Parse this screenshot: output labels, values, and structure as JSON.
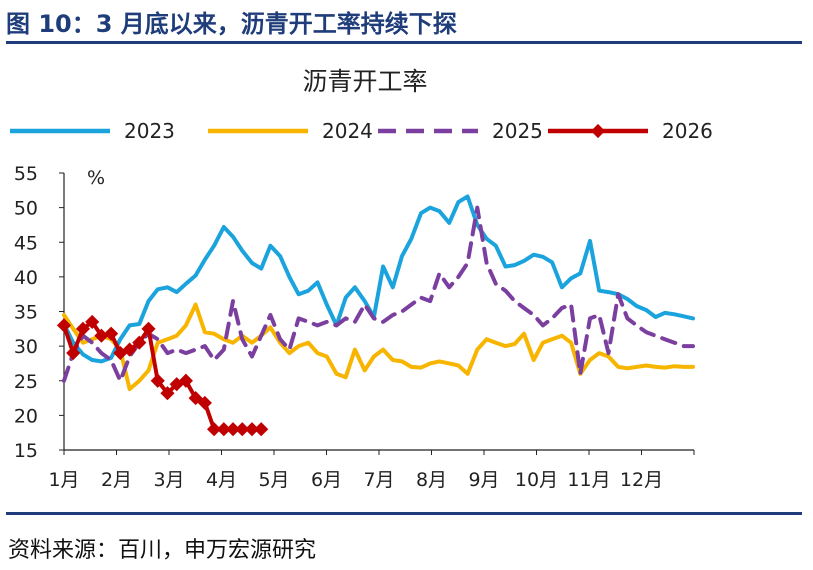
{
  "figure": {
    "title": "图 10：3 月底以来，沥青开工率持续下探",
    "source": "资料来源：百川，申万宏源研究"
  },
  "colors": {
    "title": "#1f3d7a",
    "series_2023": "#1aa3dc",
    "series_2024": "#f7b500",
    "series_2025": "#7b3f9f",
    "series_2026": "#c00000",
    "axis": "#222222"
  },
  "chart_data": {
    "type": "line",
    "title": "沥青开工率",
    "unit": "%",
    "xlabel": "",
    "ylabel": "",
    "ylim": [
      15,
      55
    ],
    "yticks": [
      15,
      20,
      25,
      30,
      35,
      40,
      45,
      50,
      55
    ],
    "xlim": [
      1,
      13.3
    ],
    "xticks": [
      "1月",
      "2月",
      "3月",
      "4月",
      "5月",
      "6月",
      "7月",
      "8月",
      "9月",
      "10月",
      "11月",
      "12月"
    ],
    "grid": false,
    "legend_position": "top",
    "series": [
      {
        "name": "2023",
        "style": "solid",
        "x": [
          1.0,
          1.18,
          1.37,
          1.55,
          1.73,
          1.92,
          2.1,
          2.28,
          2.47,
          2.65,
          2.83,
          3.02,
          3.2,
          3.38,
          3.57,
          3.75,
          3.93,
          4.12,
          4.3,
          4.48,
          4.67,
          4.85,
          5.03,
          5.22,
          5.4,
          5.58,
          5.77,
          5.95,
          6.13,
          6.32,
          6.5,
          6.68,
          6.87,
          7.05,
          7.23,
          7.42,
          7.6,
          7.78,
          7.97,
          8.15,
          8.33,
          8.52,
          8.7,
          8.88,
          9.07,
          9.25,
          9.43,
          9.62,
          9.8,
          9.98,
          10.17,
          10.35,
          10.53,
          10.72,
          10.9,
          11.08,
          11.27,
          11.45,
          11.63,
          11.82,
          12.0,
          12.18,
          12.37,
          12.55,
          12.73,
          12.92,
          13.1,
          13.28
        ],
        "values": [
          33.2,
          30.5,
          28.8,
          28.0,
          27.8,
          28.3,
          31.0,
          33.0,
          33.2,
          36.5,
          38.2,
          38.5,
          37.8,
          39.0,
          40.2,
          42.5,
          44.5,
          47.2,
          45.8,
          43.8,
          42.0,
          41.2,
          44.5,
          43.0,
          40.0,
          37.5,
          38.0,
          39.2,
          36.0,
          33.0,
          37.0,
          38.5,
          36.5,
          34.2,
          41.5,
          38.5,
          43.0,
          45.5,
          49.2,
          50.0,
          49.5,
          47.8,
          50.8,
          51.6,
          47.5,
          45.5,
          44.5,
          41.5,
          41.7,
          42.3,
          43.2,
          42.9,
          42.1,
          38.5,
          39.8,
          40.5,
          45.2,
          38.0,
          37.8,
          37.5,
          36.8,
          35.8,
          35.2,
          34.2,
          34.8,
          34.6,
          34.3,
          34.0
        ]
      },
      {
        "name": "2024",
        "style": "solid",
        "x": [
          1.0,
          1.18,
          1.37,
          1.55,
          1.73,
          1.92,
          2.1,
          2.28,
          2.47,
          2.65,
          2.83,
          3.02,
          3.2,
          3.38,
          3.57,
          3.75,
          3.93,
          4.12,
          4.3,
          4.48,
          4.67,
          4.85,
          5.03,
          5.22,
          5.4,
          5.58,
          5.77,
          5.95,
          6.13,
          6.32,
          6.5,
          6.68,
          6.87,
          7.05,
          7.23,
          7.42,
          7.6,
          7.78,
          7.97,
          8.15,
          8.33,
          8.52,
          8.7,
          8.88,
          9.07,
          9.25,
          9.43,
          9.62,
          9.8,
          9.98,
          10.17,
          10.35,
          10.53,
          10.72,
          10.9,
          11.08,
          11.27,
          11.45,
          11.63,
          11.82,
          12.0,
          12.18,
          12.37,
          12.55,
          12.73,
          12.92,
          13.1,
          13.28
        ],
        "values": [
          34.5,
          32.5,
          30.5,
          31.0,
          31.5,
          31.0,
          29.5,
          23.8,
          25.0,
          26.5,
          30.5,
          31.0,
          31.5,
          33.0,
          36.0,
          32.0,
          31.8,
          31.0,
          30.5,
          31.5,
          30.5,
          31.5,
          32.7,
          30.5,
          29.0,
          30.0,
          30.5,
          29.0,
          28.5,
          26.0,
          25.5,
          29.5,
          26.5,
          28.5,
          29.5,
          28.0,
          27.8,
          27.0,
          26.9,
          27.5,
          27.8,
          27.5,
          27.2,
          26.0,
          29.5,
          31.0,
          30.5,
          30.0,
          30.3,
          31.8,
          28.0,
          30.5,
          31.0,
          31.5,
          30.5,
          26.0,
          28.0,
          29.0,
          28.5,
          27.0,
          26.8,
          27.0,
          27.2,
          27.0,
          26.9,
          27.1,
          27.0,
          27.0
        ]
      },
      {
        "name": "2025",
        "style": "dashed",
        "x": [
          1.0,
          1.18,
          1.37,
          1.55,
          1.73,
          1.92,
          2.1,
          2.28,
          2.47,
          2.65,
          2.83,
          3.02,
          3.2,
          3.38,
          3.57,
          3.75,
          3.93,
          4.12,
          4.3,
          4.48,
          4.67,
          4.85,
          5.03,
          5.22,
          5.4,
          5.58,
          5.77,
          5.95,
          6.13,
          6.32,
          6.5,
          6.68,
          6.87,
          7.05,
          7.23,
          7.42,
          7.6,
          7.78,
          7.97,
          8.15,
          8.33,
          8.52,
          8.7,
          8.88,
          9.07,
          9.25,
          9.43,
          9.62,
          9.8,
          9.98,
          10.17,
          10.35,
          10.53,
          10.72,
          10.9,
          11.08,
          11.27,
          11.45,
          11.63,
          11.82,
          12.0,
          12.18,
          12.37,
          12.55,
          12.73,
          12.92,
          13.1,
          13.28
        ],
        "values": [
          25.0,
          29.0,
          31.5,
          30.5,
          29.0,
          28.0,
          25.0,
          28.5,
          30.5,
          31.8,
          31.0,
          29.0,
          29.5,
          29.0,
          29.5,
          30.0,
          28.0,
          29.5,
          36.5,
          31.0,
          28.5,
          31.5,
          34.5,
          31.0,
          29.5,
          34.0,
          33.5,
          33.0,
          33.5,
          33.0,
          34.0,
          33.5,
          36.0,
          34.0,
          33.5,
          34.5,
          35.0,
          36.0,
          37.0,
          36.5,
          40.5,
          38.5,
          40.0,
          42.0,
          50.0,
          42.0,
          39.0,
          38.0,
          36.5,
          35.5,
          34.5,
          33.0,
          34.0,
          35.5,
          36.0,
          26.0,
          34.0,
          34.5,
          29.0,
          37.5,
          34.0,
          33.0,
          32.0,
          31.5,
          31.0,
          30.5,
          30.0,
          30.0
        ]
      },
      {
        "name": "2026",
        "style": "solid-marker",
        "x": [
          1.0,
          1.18,
          1.37,
          1.55,
          1.73,
          1.92,
          2.1,
          2.28,
          2.47,
          2.65,
          2.83,
          3.02,
          3.2,
          3.38,
          3.57,
          3.75,
          3.93,
          4.12,
          4.3,
          4.48,
          4.67,
          4.85
        ],
        "values": [
          33.0,
          29.0,
          32.5,
          33.5,
          31.5,
          31.8,
          29.0,
          29.5,
          30.5,
          32.5,
          25.0,
          23.2,
          24.5,
          25.0,
          22.5,
          21.8,
          18.0,
          18.0,
          18.0,
          18.0,
          18.0,
          18.0
        ]
      }
    ]
  }
}
